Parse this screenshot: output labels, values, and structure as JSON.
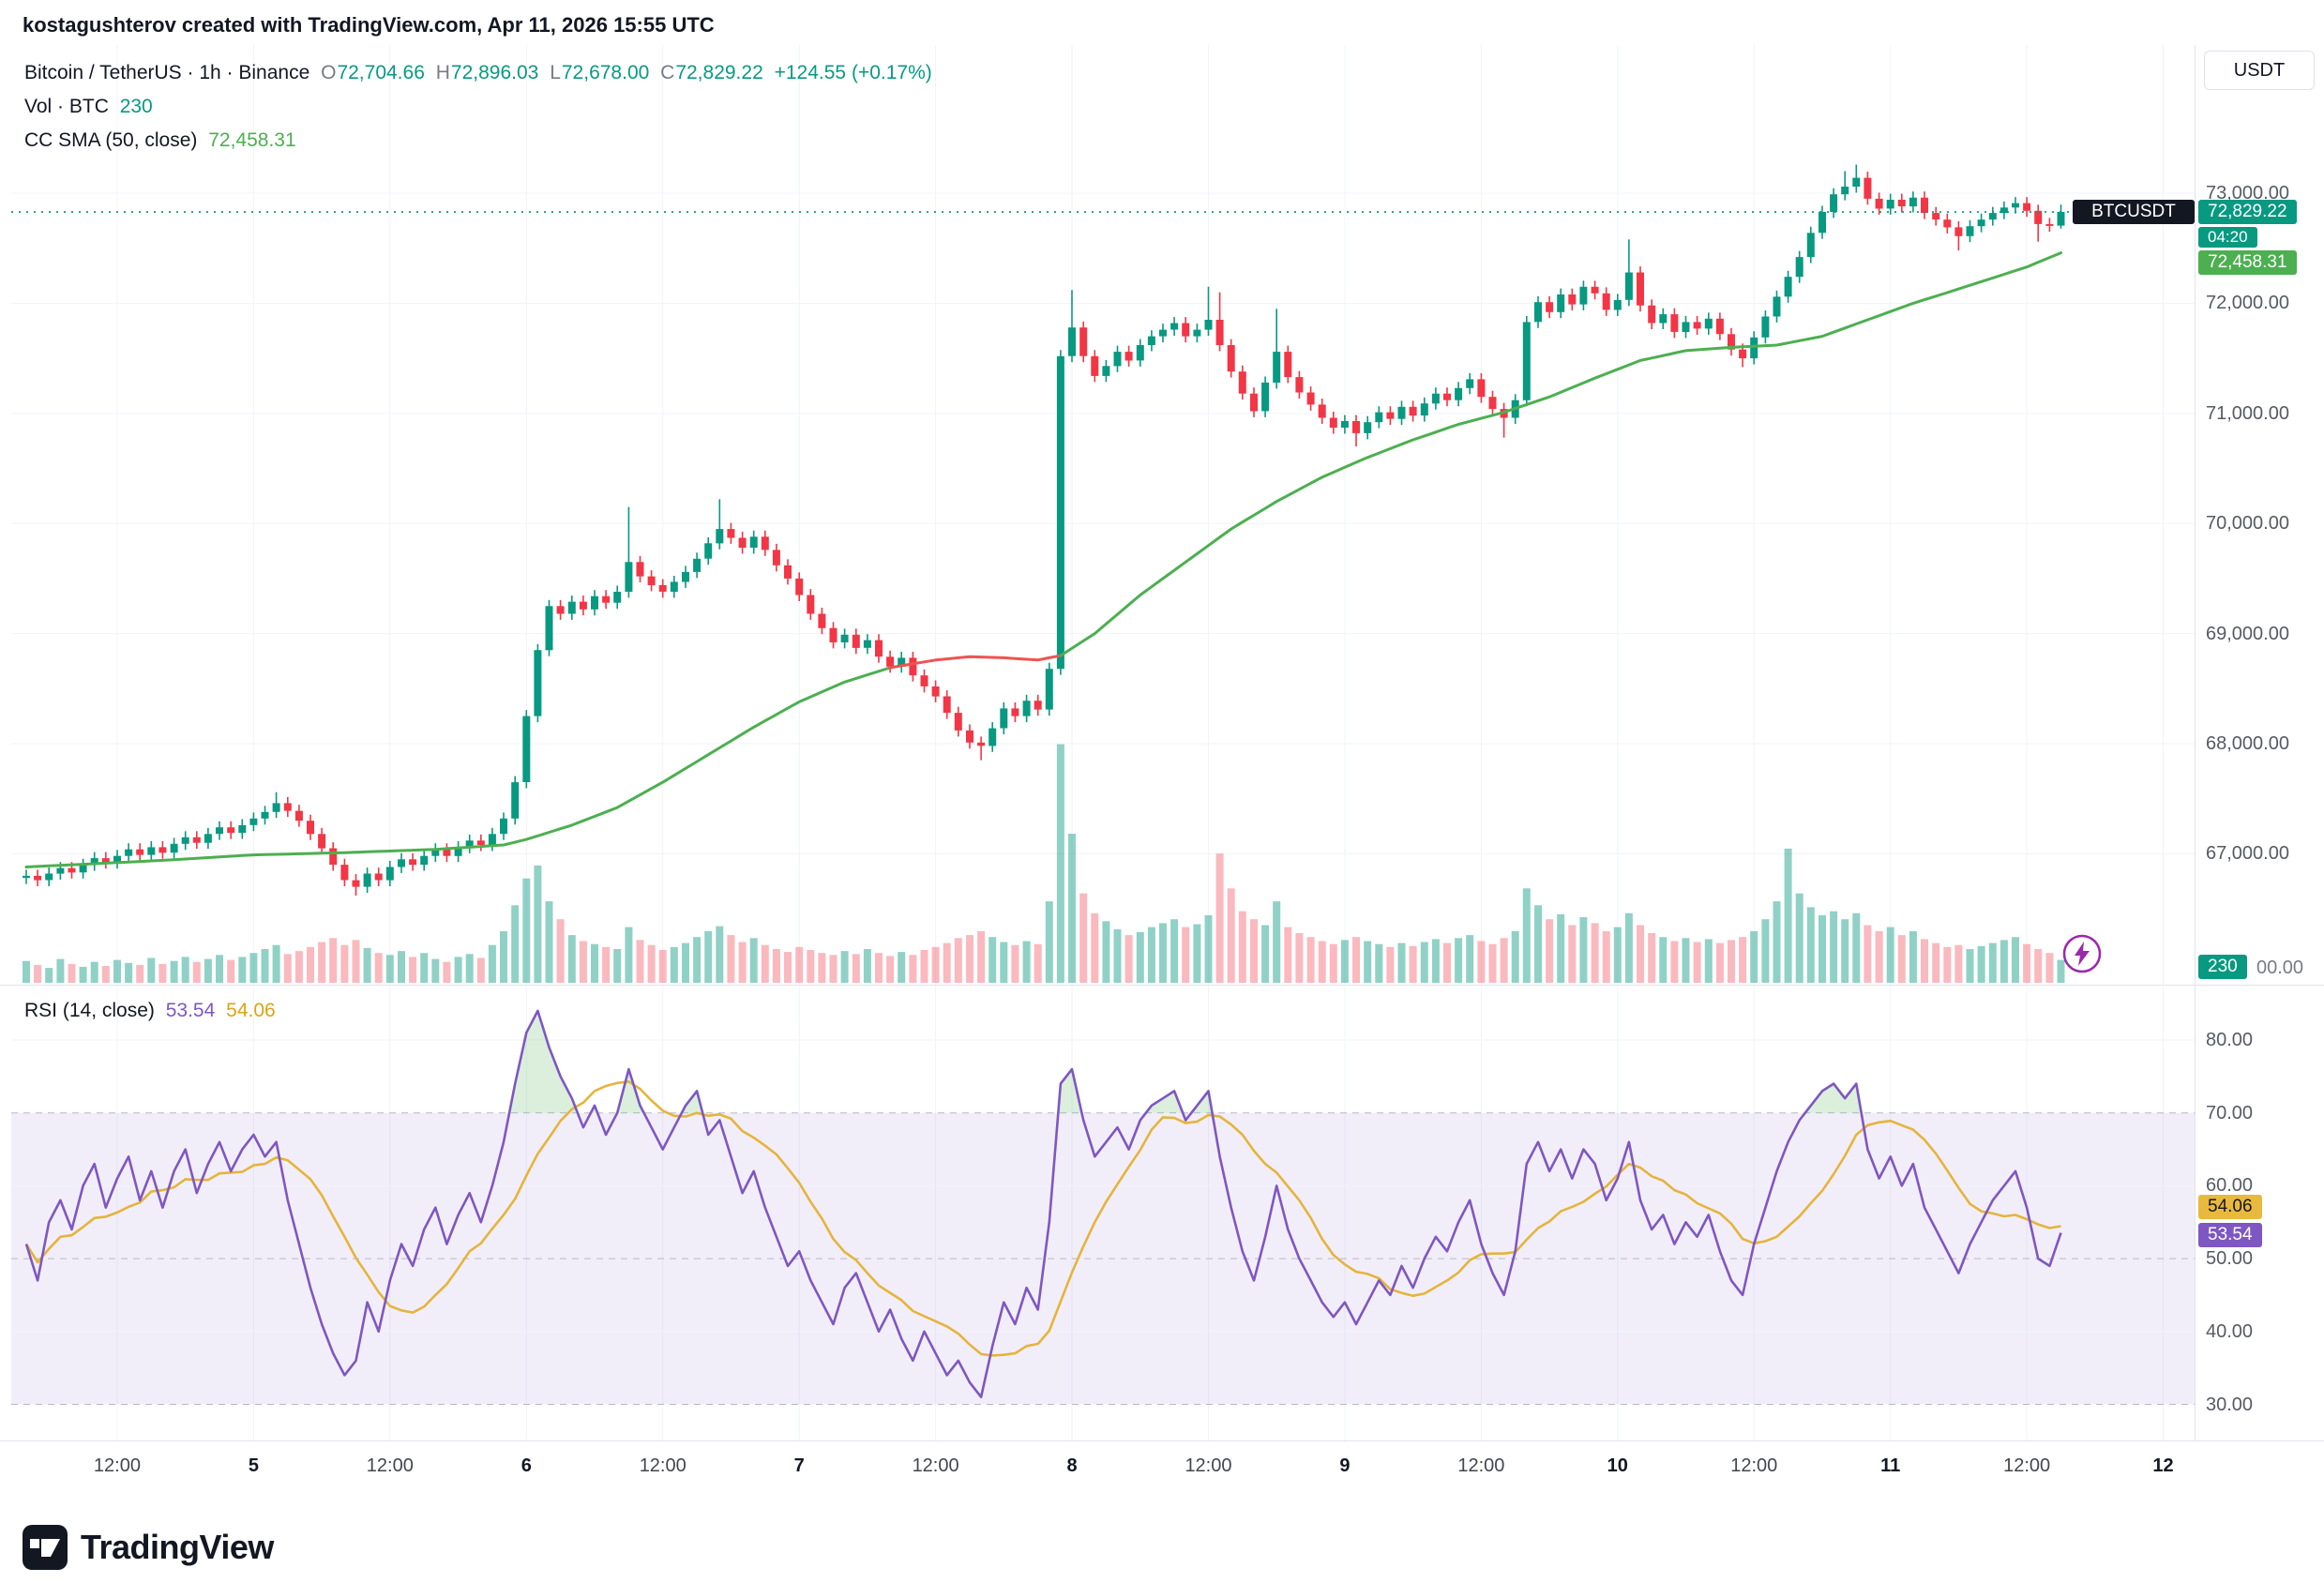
{
  "header": {
    "attribution": "kostagushterov created with TradingView.com, Apr 11, 2026 15:55 UTC"
  },
  "legend": {
    "symbol": "Bitcoin / TetherUS · 1h · Binance",
    "o_label": "O",
    "o": "72,704.66",
    "h_label": "H",
    "h": "72,896.03",
    "l_label": "L",
    "l": "72,678.00",
    "c_label": "C",
    "c": "72,829.22",
    "change": "+124.55 (+0.17%)",
    "vol_label": "Vol · BTC",
    "vol_value": "230",
    "sma_label": "CC SMA (50, close)",
    "sma_value": "72,458.31",
    "rsi_label": "RSI (14, close)",
    "rsi_value": "53.54",
    "rsi_ma_value": "54.06"
  },
  "scale": {
    "currency_button": "USDT",
    "symbol_chip": "BTCUSDT",
    "last_price_chip": "72,829.22",
    "countdown_chip": "04:20",
    "sma_chip": "72,458.31",
    "volume_chip": "230",
    "volume_axis_label": "00.00",
    "rsi_ma_chip": "54.06",
    "rsi_chip": "53.54",
    "price_ticks": [
      {
        "label": "73,000.00",
        "value": 73000
      },
      {
        "label": "72,000.00",
        "value": 72000
      },
      {
        "label": "71,000.00",
        "value": 71000
      },
      {
        "label": "70,000.00",
        "value": 70000
      },
      {
        "label": "69,000.00",
        "value": 69000
      },
      {
        "label": "68,000.00",
        "value": 68000
      },
      {
        "label": "67,000.00",
        "value": 67000
      }
    ],
    "rsi_ticks": [
      {
        "label": "80.00",
        "value": 80,
        "dashed": false
      },
      {
        "label": "70.00",
        "value": 70,
        "dashed": true
      },
      {
        "label": "60.00",
        "value": 60,
        "dashed": false
      },
      {
        "label": "50.00",
        "value": 50,
        "dashed": true
      },
      {
        "label": "40.00",
        "value": 40,
        "dashed": false
      },
      {
        "label": "30.00",
        "value": 30,
        "dashed": true
      }
    ]
  },
  "footer": {
    "brand": "TradingView"
  },
  "colors": {
    "up": "#089981",
    "down": "#f23645",
    "vol_up": "rgba(8,153,129,0.45)",
    "vol_down": "rgba(242,54,69,0.35)",
    "sma_up": "#4caf50",
    "sma_down": "#ef5350",
    "rsi_line": "#7e57c2",
    "rsi_ma_line": "#e5b43c",
    "rsi_band_fill": "rgba(126,87,194,0.10)",
    "rsi_overbought_fill": "rgba(76,175,80,0.20)",
    "grid": "#f0f3fa",
    "dashed_level": "#b6b9c4",
    "price_line": "#089981",
    "badge_symbol_bg": "#131722",
    "badge_price_bg": "#089981",
    "badge_sma_bg": "#4caf50",
    "badge_vol_bg": "#089981",
    "badge_rsi_bg": "#7e57c2",
    "badge_rsi_ma_bg": "#e8b93c",
    "accent_bolt": "#9c27b0"
  },
  "chart_data": {
    "type": "candlestick",
    "title": "Bitcoin / TetherUS 1h Binance with volume, SMA(50) and RSI(14)",
    "symbol": "BTCUSDT",
    "exchange": "Binance",
    "interval": "1h",
    "time_span": "Apr 4 04:00 UTC to Apr 11 16:00 UTC 2026, one candle per hour",
    "ylim": [
      66350,
      74250
    ],
    "y_ticks": [
      67000,
      68000,
      69000,
      70000,
      71000,
      72000,
      73000
    ],
    "last": {
      "open": 72704.66,
      "high": 72896.03,
      "low": 72678.0,
      "close": 72829.22,
      "change": 124.55,
      "change_pct": 0.17,
      "countdown": "04:20"
    },
    "sma50_last": 72458.31,
    "volume_last": 230,
    "first_open": 66780,
    "closes": [
      66800,
      66760,
      66820,
      66870,
      66830,
      66900,
      66960,
      66920,
      66980,
      67040,
      66990,
      67060,
      67010,
      67090,
      67150,
      67100,
      67180,
      67240,
      67190,
      67260,
      67320,
      67380,
      67460,
      67390,
      67300,
      67180,
      67050,
      66900,
      66760,
      66700,
      66820,
      66760,
      66880,
      66950,
      66900,
      66980,
      67040,
      66980,
      67060,
      67120,
      67080,
      67180,
      67320,
      67650,
      68250,
      68850,
      69250,
      69180,
      69290,
      69220,
      69340,
      69280,
      69380,
      69650,
      69520,
      69440,
      69380,
      69470,
      69560,
      69680,
      69820,
      69950,
      69870,
      69780,
      69880,
      69760,
      69620,
      69500,
      69350,
      69180,
      69050,
      68920,
      68990,
      68870,
      68940,
      68790,
      68700,
      68780,
      68620,
      68520,
      68430,
      68280,
      68120,
      68010,
      67980,
      68140,
      68320,
      68250,
      68390,
      68310,
      68680,
      71520,
      71780,
      71520,
      71340,
      71430,
      71560,
      71480,
      71620,
      71700,
      71760,
      71820,
      71700,
      71760,
      71850,
      71620,
      71380,
      71180,
      71020,
      71280,
      71560,
      71330,
      71190,
      71080,
      70960,
      70870,
      70930,
      70820,
      70920,
      71010,
      70950,
      71060,
      70980,
      71090,
      71180,
      71120,
      71230,
      71310,
      71150,
      71040,
      70960,
      71120,
      71830,
      72010,
      71920,
      72080,
      71990,
      72150,
      72090,
      71940,
      72030,
      72280,
      71980,
      71820,
      71900,
      71740,
      71830,
      71770,
      71860,
      71720,
      71580,
      71500,
      71690,
      71880,
      72060,
      72240,
      72420,
      72640,
      72830,
      72990,
      73060,
      73140,
      72950,
      72860,
      72940,
      72880,
      72960,
      72820,
      72760,
      72690,
      72610,
      72700,
      72760,
      72820,
      72870,
      72910,
      72840,
      72720,
      72704.66,
      72829.22
    ],
    "wick_overrides": {
      "22": [
        67560,
        null
      ],
      "29": [
        null,
        66620
      ],
      "53": [
        70150,
        null
      ],
      "61": [
        70220,
        null
      ],
      "84": [
        null,
        67850
      ],
      "92": [
        72120,
        null
      ],
      "104": [
        72150,
        null
      ],
      "105": [
        72100,
        null
      ],
      "110": [
        71950,
        null
      ],
      "117": [
        null,
        70700
      ],
      "130": [
        null,
        70780
      ],
      "141": [
        72580,
        null
      ],
      "151": [
        null,
        71420
      ],
      "160": [
        73200,
        null
      ],
      "161": [
        73260,
        null
      ],
      "170": [
        null,
        72480
      ],
      "177": [
        null,
        72560
      ],
      "179": [
        72896.03,
        72678.0
      ]
    },
    "volumes": [
      220,
      180,
      150,
      240,
      190,
      160,
      210,
      170,
      230,
      200,
      180,
      250,
      190,
      220,
      260,
      210,
      240,
      280,
      230,
      260,
      300,
      340,
      380,
      290,
      320,
      360,
      410,
      450,
      380,
      430,
      350,
      300,
      280,
      320,
      260,
      300,
      240,
      210,
      260,
      290,
      250,
      380,
      520,
      780,
      1050,
      1180,
      820,
      640,
      480,
      420,
      390,
      360,
      340,
      560,
      430,
      380,
      330,
      360,
      400,
      460,
      520,
      570,
      480,
      410,
      450,
      380,
      340,
      310,
      360,
      330,
      300,
      280,
      320,
      290,
      340,
      300,
      270,
      310,
      280,
      330,
      360,
      400,
      450,
      480,
      520,
      460,
      410,
      380,
      420,
      390,
      820,
      2400,
      1500,
      900,
      700,
      620,
      540,
      480,
      510,
      560,
      600,
      640,
      560,
      590,
      680,
      1300,
      950,
      720,
      640,
      580,
      820,
      560,
      500,
      460,
      420,
      390,
      430,
      460,
      420,
      390,
      360,
      400,
      370,
      410,
      440,
      400,
      450,
      480,
      420,
      390,
      450,
      520,
      950,
      780,
      640,
      690,
      580,
      660,
      600,
      520,
      560,
      700,
      580,
      500,
      460,
      420,
      450,
      410,
      440,
      400,
      430,
      460,
      520,
      640,
      820,
      1350,
      900,
      760,
      680,
      720,
      640,
      700,
      580,
      520,
      560,
      480,
      520,
      440,
      400,
      360,
      380,
      340,
      370,
      400,
      430,
      460,
      390,
      340,
      300,
      230
    ],
    "sma50_anchors": [
      [
        0,
        66880
      ],
      [
        12,
        66940
      ],
      [
        20,
        66990
      ],
      [
        28,
        67010
      ],
      [
        36,
        67040
      ],
      [
        42,
        67080
      ],
      [
        44,
        67130
      ],
      [
        48,
        67260
      ],
      [
        52,
        67420
      ],
      [
        56,
        67650
      ],
      [
        60,
        67900
      ],
      [
        64,
        68150
      ],
      [
        68,
        68380
      ],
      [
        72,
        68560
      ],
      [
        76,
        68690
      ],
      [
        80,
        68760
      ],
      [
        83,
        68790
      ],
      [
        86,
        68780
      ],
      [
        89,
        68760
      ],
      [
        91,
        68800
      ],
      [
        94,
        69000
      ],
      [
        98,
        69350
      ],
      [
        102,
        69650
      ],
      [
        106,
        69950
      ],
      [
        110,
        70200
      ],
      [
        114,
        70420
      ],
      [
        118,
        70600
      ],
      [
        122,
        70760
      ],
      [
        126,
        70900
      ],
      [
        130,
        71010
      ],
      [
        134,
        71150
      ],
      [
        138,
        71320
      ],
      [
        142,
        71480
      ],
      [
        146,
        71570
      ],
      [
        150,
        71600
      ],
      [
        154,
        71620
      ],
      [
        158,
        71700
      ],
      [
        162,
        71850
      ],
      [
        166,
        72000
      ],
      [
        170,
        72130
      ],
      [
        173,
        72230
      ],
      [
        176,
        72330
      ],
      [
        179,
        72458.31
      ]
    ],
    "sma_bear_idx": [
      76,
      91
    ],
    "rsi": {
      "period": 14,
      "last": 53.54,
      "ma_last": 54.06,
      "ma_window": 10,
      "range": [
        30,
        70
      ],
      "levels": [
        70,
        50,
        30
      ],
      "values": [
        52,
        47,
        55,
        58,
        54,
        60,
        63,
        57,
        61,
        64,
        58,
        62,
        57,
        62,
        65,
        59,
        63,
        66,
        62,
        65,
        67,
        64,
        66,
        58,
        52,
        46,
        41,
        37,
        34,
        36,
        44,
        40,
        47,
        52,
        49,
        54,
        57,
        52,
        56,
        59,
        55,
        60,
        66,
        74,
        81,
        84,
        79,
        75,
        72,
        68,
        71,
        67,
        70,
        76,
        71,
        68,
        65,
        68,
        71,
        73,
        67,
        69,
        64,
        59,
        62,
        57,
        53,
        49,
        51,
        47,
        44,
        41,
        46,
        48,
        44,
        40,
        43,
        39,
        36,
        40,
        37,
        34,
        36,
        33,
        31,
        38,
        44,
        41,
        46,
        43,
        55,
        74,
        76,
        69,
        64,
        66,
        68,
        65,
        69,
        71,
        72,
        73,
        69,
        71,
        73,
        64,
        57,
        51,
        47,
        53,
        60,
        54,
        50,
        47,
        44,
        42,
        44,
        41,
        44,
        47,
        45,
        49,
        46,
        50,
        53,
        51,
        55,
        58,
        52,
        48,
        45,
        51,
        63,
        66,
        62,
        65,
        61,
        65,
        63,
        58,
        61,
        66,
        58,
        54,
        56,
        52,
        55,
        53,
        56,
        51,
        47,
        45,
        52,
        57,
        62,
        66,
        69,
        71,
        73,
        74,
        72,
        74,
        65,
        61,
        64,
        60,
        63,
        57,
        54,
        51,
        48,
        52,
        55,
        58,
        60,
        62,
        57,
        50,
        49,
        53.54
      ]
    },
    "x_ticks": [
      {
        "label": "12:00",
        "idx": 8,
        "day": false
      },
      {
        "label": "5",
        "idx": 20,
        "day": true
      },
      {
        "label": "12:00",
        "idx": 32,
        "day": false
      },
      {
        "label": "6",
        "idx": 44,
        "day": true
      },
      {
        "label": "12:00",
        "idx": 56,
        "day": false
      },
      {
        "label": "7",
        "idx": 68,
        "day": true
      },
      {
        "label": "12:00",
        "idx": 80,
        "day": false
      },
      {
        "label": "8",
        "idx": 92,
        "day": true
      },
      {
        "label": "12:00",
        "idx": 104,
        "day": false
      },
      {
        "label": "9",
        "idx": 116,
        "day": true
      },
      {
        "label": "12:00",
        "idx": 128,
        "day": false
      },
      {
        "label": "10",
        "idx": 140,
        "day": true
      },
      {
        "label": "12:00",
        "idx": 152,
        "day": false
      },
      {
        "label": "11",
        "idx": 164,
        "day": true
      },
      {
        "label": "12:00",
        "idx": 176,
        "day": false
      },
      {
        "label": "12",
        "idx": 188,
        "day": true
      }
    ]
  }
}
